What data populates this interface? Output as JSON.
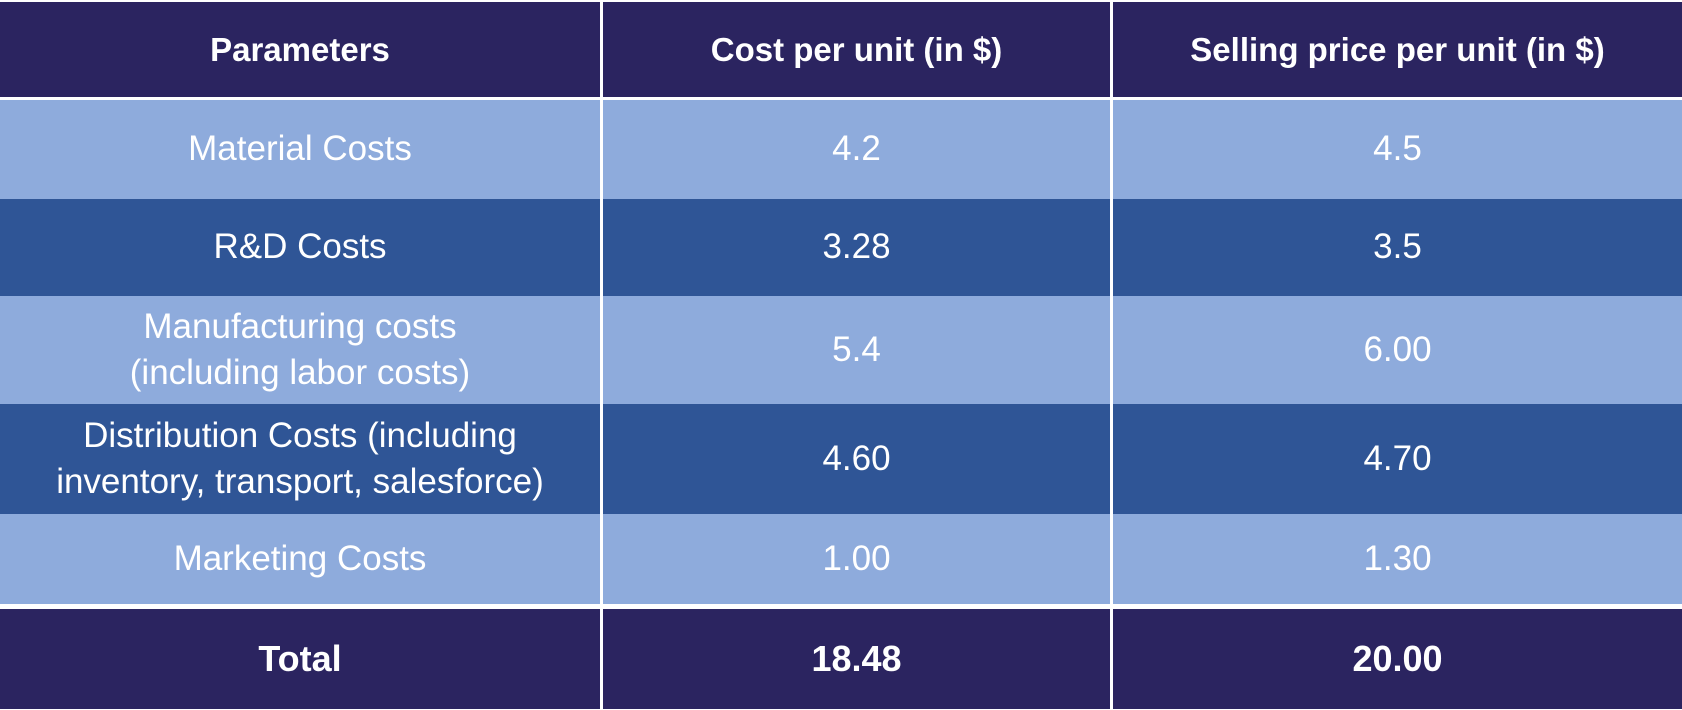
{
  "header": {
    "col1": "Parameters",
    "col2": "Cost per unit (in $)",
    "col3": "Selling price per unit (in $)"
  },
  "rows": [
    {
      "parameter_line1": "Material Costs",
      "parameter_line2": "",
      "cost": "4.2",
      "price": "4.5"
    },
    {
      "parameter_line1": "R&D Costs",
      "parameter_line2": "",
      "cost": "3.28",
      "price": "3.5"
    },
    {
      "parameter_line1": "Manufacturing costs",
      "parameter_line2": "(including labor costs)",
      "cost": "5.4",
      "price": "6.00"
    },
    {
      "parameter_line1": "Distribution Costs (including",
      "parameter_line2": "inventory, transport, salesforce)",
      "cost": "4.60",
      "price": "4.70"
    },
    {
      "parameter_line1": "Marketing Costs",
      "parameter_line2": "",
      "cost": "1.00",
      "price": "1.30"
    }
  ],
  "total": {
    "label": "Total",
    "cost": "18.48",
    "price": "20.00"
  },
  "colors": {
    "header_bg": "#2b2460",
    "row_light": "#8eabdc",
    "row_dark": "#2f5596",
    "text": "#ffffff"
  }
}
